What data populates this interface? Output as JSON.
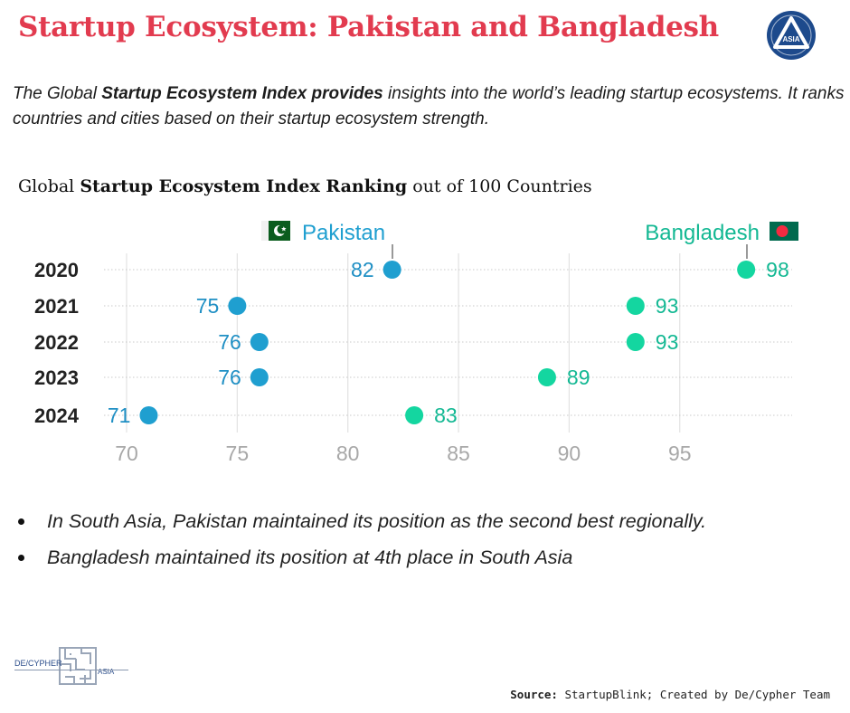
{
  "header": {
    "title": "Startup Ecosystem: Pakistan and Bangladesh",
    "logo_text": "ASIA"
  },
  "intro": {
    "part1": "The Global ",
    "bold": "Startup Ecosystem Index provides",
    "part2": " insights into the world’s leading startup ecosystems. It ranks countries and cities based on their startup ecosystem strength."
  },
  "chart_title": {
    "part1": "Global ",
    "bold": "Startup Ecosystem Index Ranking",
    "part2": " out of 100 Countries"
  },
  "chart_data": {
    "type": "dumbbell",
    "title": "Global Startup Ecosystem Index Ranking out of 100 Countries",
    "categories": [
      "2020",
      "2021",
      "2022",
      "2023",
      "2024"
    ],
    "series": [
      {
        "name": "Pakistan",
        "values": [
          82,
          75,
          76,
          76,
          71
        ],
        "color": "#1f9fd0"
      },
      {
        "name": "Bangladesh",
        "values": [
          98,
          93,
          93,
          89,
          83
        ],
        "color": "#14d6a0"
      }
    ],
    "xticks": [
      70,
      75,
      80,
      85,
      90,
      95
    ],
    "xlim": [
      69.5,
      101
    ],
    "xlabel": "",
    "ylabel": ""
  },
  "bullets": [
    "In South Asia, Pakistan maintained its position as the second best regionally.",
    "Bangladesh maintained its position at 4th place in South Asia"
  ],
  "footer": {
    "brand_left": "DE/CYPHER",
    "brand_right": "ASIA",
    "source_label": "Source:",
    "source_text": " StartupBlink; Created by De/Cypher Team"
  },
  "colors": {
    "title": "#e23b4f",
    "pakistan": "#1f9fd0",
    "bangladesh": "#14d6a0",
    "label_pk": "#1f8fc4",
    "label_bd": "#13b893"
  }
}
